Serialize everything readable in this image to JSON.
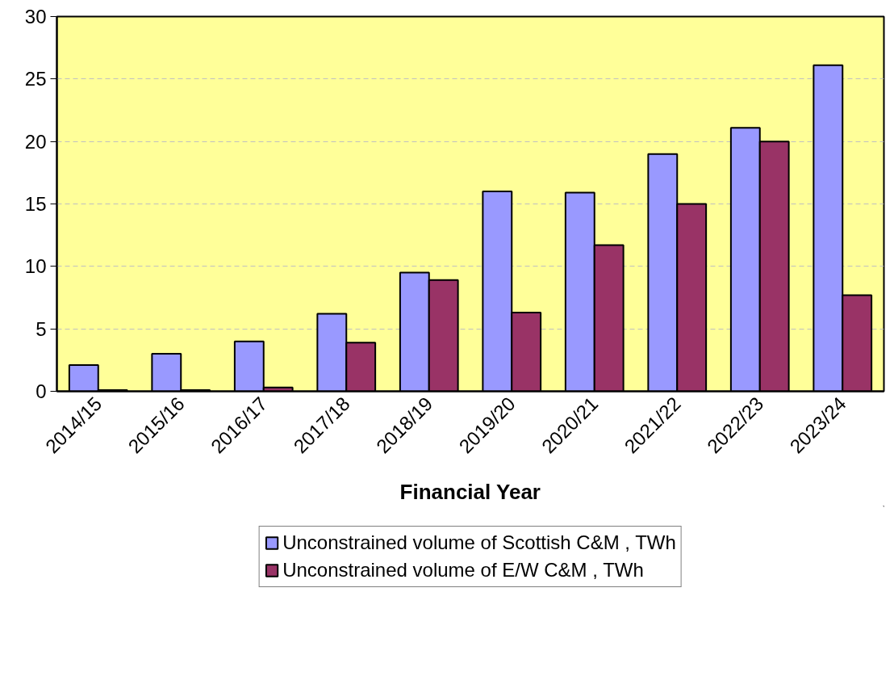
{
  "chart_data": {
    "type": "bar",
    "xlabel": "Financial Year",
    "categories": [
      "2014/15",
      "2015/16",
      "2016/17",
      "2017/18",
      "2018/19",
      "2019/20",
      "2020/21",
      "2021/22",
      "2022/23",
      "2023/24"
    ],
    "series": [
      {
        "name": "Unconstrained volume of Scottish C&M , TWh",
        "color": "#9999ff",
        "values": [
          2.1,
          3.0,
          4.0,
          6.2,
          9.5,
          16.0,
          15.9,
          19.0,
          21.1,
          26.1
        ]
      },
      {
        "name": "Unconstrained volume of E/W C&M , TWh",
        "color": "#993366",
        "values": [
          0.1,
          0.1,
          0.3,
          3.9,
          8.9,
          6.3,
          11.7,
          15.0,
          20.0,
          7.7
        ]
      }
    ],
    "ylim": [
      0,
      30
    ],
    "yticks": [
      0,
      5,
      10,
      15,
      20,
      25,
      30
    ],
    "grid": "y",
    "legend": "bottom"
  }
}
